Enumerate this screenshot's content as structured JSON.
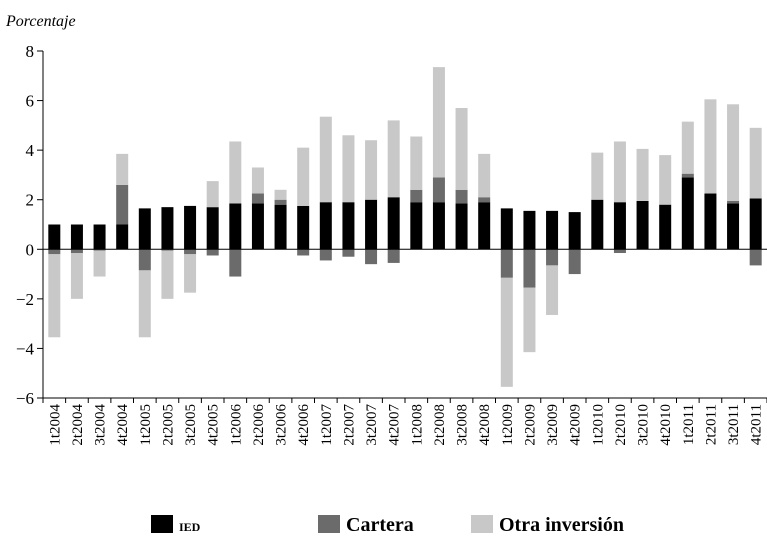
{
  "chart_data": {
    "type": "bar",
    "stacked": true,
    "ylabel": "Porcentaje",
    "ylim": [
      -6,
      8
    ],
    "yticks": [
      -6,
      -4,
      -2,
      0,
      2,
      4,
      6,
      8
    ],
    "ytick_labels": [
      "−6",
      "−4",
      "−2",
      "0",
      "2",
      "4",
      "6",
      "8"
    ],
    "grid": false,
    "legend_position": "bottom",
    "categories": [
      "1t2004",
      "2t2004",
      "3t2004",
      "4t2004",
      "1t2005",
      "2t2005",
      "3t2005",
      "4t2005",
      "1t2006",
      "2t2006",
      "3t2006",
      "4t2006",
      "1t2007",
      "2t2007",
      "3t2007",
      "4t2007",
      "1t2008",
      "2t2008",
      "3t2008",
      "4t2008",
      "1t2009",
      "2t2009",
      "3t2009",
      "4t2009",
      "1t2010",
      "2t2010",
      "3t2010",
      "4t2010",
      "1t2011",
      "2t2011",
      "3t2011",
      "4t2011"
    ],
    "series": [
      {
        "name": "IED",
        "color": "#000000",
        "values": [
          1.0,
          1.0,
          1.0,
          1.0,
          1.65,
          1.7,
          1.75,
          1.7,
          1.85,
          1.85,
          1.8,
          1.75,
          1.9,
          1.9,
          2.0,
          2.1,
          1.9,
          1.9,
          1.85,
          1.9,
          1.65,
          1.55,
          1.55,
          1.5,
          2.0,
          1.9,
          1.95,
          1.8,
          2.9,
          2.25,
          1.85,
          2.05
        ]
      },
      {
        "name": "Cartera",
        "color": "#6b6b6b",
        "values": [
          -0.2,
          -0.15,
          -0.05,
          1.6,
          -0.85,
          -0.05,
          -0.2,
          -0.25,
          -1.1,
          0.4,
          0.2,
          -0.25,
          -0.45,
          -0.3,
          -0.6,
          -0.55,
          0.5,
          1.0,
          0.55,
          0.2,
          -1.15,
          -1.55,
          -0.65,
          -1.0,
          0.0,
          -0.15,
          0.0,
          0.0,
          0.15,
          0.0,
          0.1,
          -0.65
        ]
      },
      {
        "name": "Otra inversión",
        "color": "#c8c8c8",
        "values": [
          -3.35,
          -1.85,
          -1.05,
          1.25,
          -2.7,
          -1.95,
          -1.55,
          1.05,
          2.5,
          1.05,
          0.4,
          2.35,
          3.45,
          2.7,
          2.4,
          3.1,
          2.15,
          4.45,
          3.3,
          1.75,
          -4.4,
          -2.6,
          -2.0,
          0.0,
          1.9,
          2.45,
          2.1,
          2.0,
          2.1,
          3.8,
          3.9,
          2.85
        ]
      }
    ]
  }
}
